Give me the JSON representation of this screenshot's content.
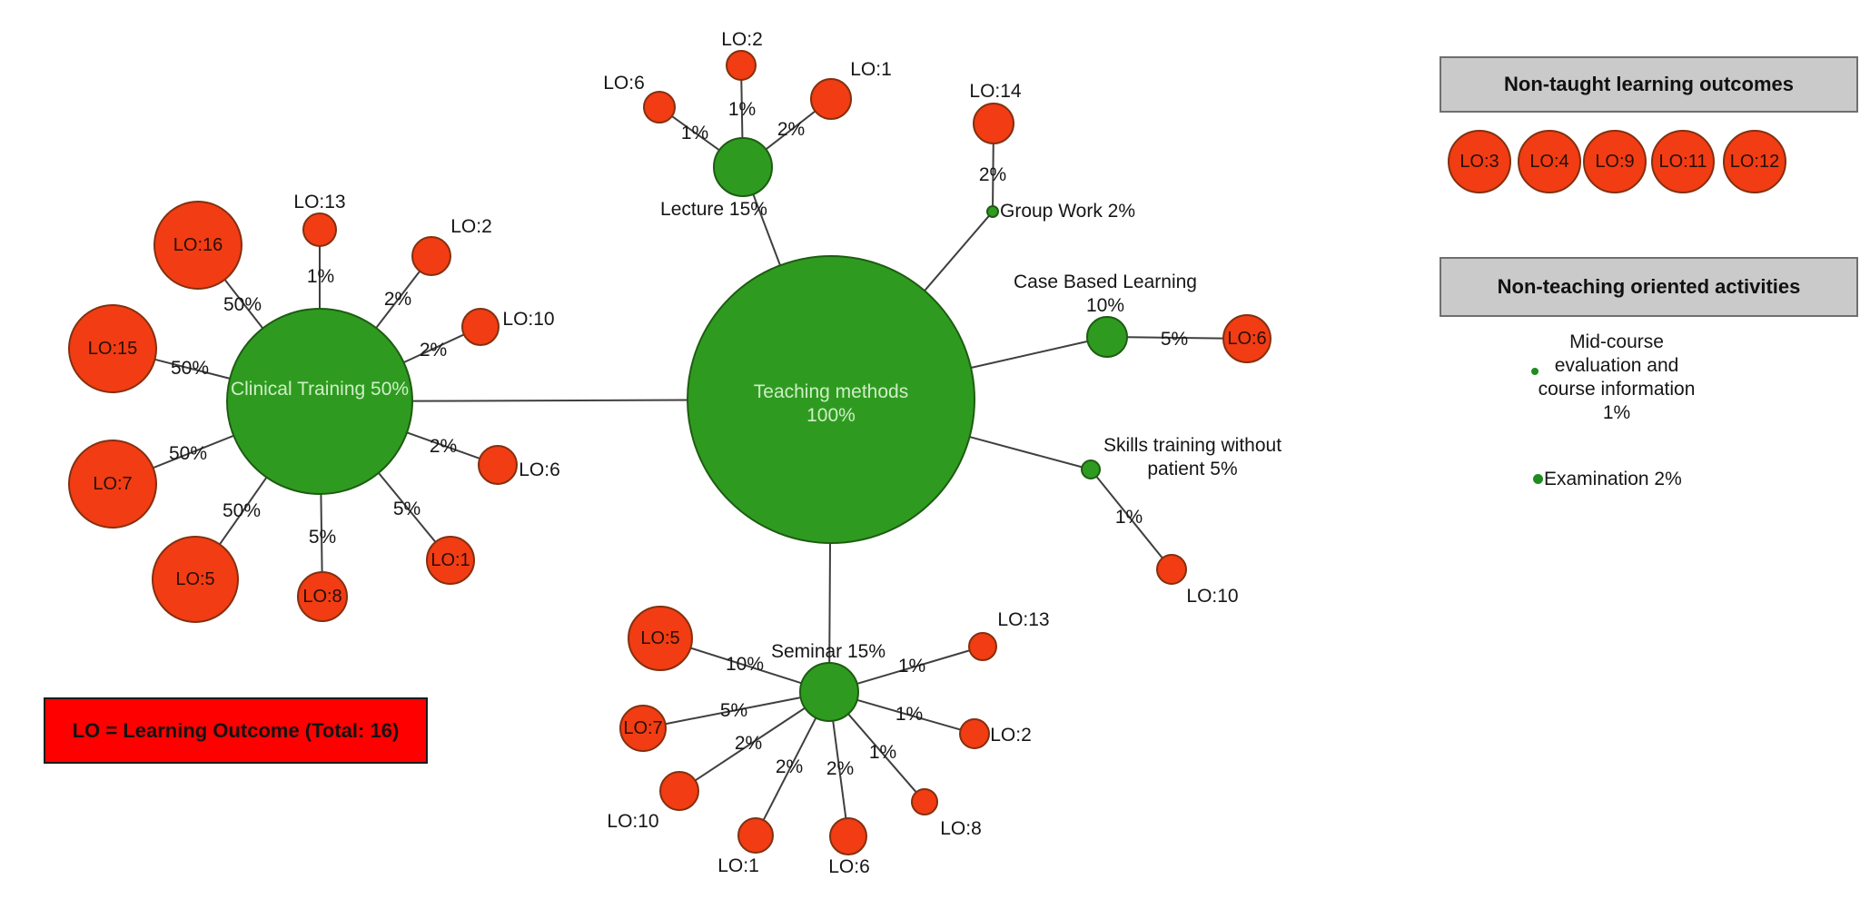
{
  "title": "Teaching methods and learning outcomes network diagram",
  "colors": {
    "method_green": "#2e9b20",
    "method_green_border": "#1e5c12",
    "lo_red": "#f23c13",
    "lo_red_border": "#82300f",
    "edge": "#3f3f3f",
    "panel_gray": "#cacaca",
    "legend_red": "#fe0000",
    "dot_green": "#1f8c1f",
    "hub_text": "#cfeec6"
  },
  "nodes": {
    "teaching": {
      "label": "Teaching methods\n100%"
    },
    "clinical": {
      "label": "Clinical Training 50%"
    },
    "lecture": {
      "label": "Lecture 15%"
    },
    "seminar": {
      "label": "Seminar 15%"
    },
    "cbl": {
      "label": "Case Based Learning\n10%"
    },
    "groupwork": {
      "label": "Group Work 2%"
    },
    "skills": {
      "label": "Skills training without\npatient 5%"
    },
    "cl_lo16": {
      "label": "LO:16",
      "pct": "50%"
    },
    "cl_lo13": {
      "label": "LO:13",
      "pct": "1%"
    },
    "cl_lo2": {
      "label": "LO:2",
      "pct": "2%"
    },
    "cl_lo10": {
      "label": "LO:10",
      "pct": "2%"
    },
    "cl_lo15": {
      "label": "LO:15",
      "pct": "50%"
    },
    "cl_lo6": {
      "label": "LO:6",
      "pct": "2%"
    },
    "cl_lo7": {
      "label": "LO:7",
      "pct": "50%"
    },
    "cl_lo5": {
      "label": "LO:5",
      "pct": "50%"
    },
    "cl_lo8": {
      "label": "LO:8",
      "pct": "5%"
    },
    "cl_lo1": {
      "label": "LO:1",
      "pct": "5%"
    },
    "lec_lo6": {
      "label": "LO:6",
      "pct": "1%"
    },
    "lec_lo2": {
      "label": "LO:2",
      "pct": "1%"
    },
    "lec_lo1": {
      "label": "LO:1",
      "pct": "2%"
    },
    "gw_lo14": {
      "label": "LO:14",
      "pct": "2%"
    },
    "cbl_lo6": {
      "label": "LO:6",
      "pct": "5%"
    },
    "sk_lo10": {
      "label": "LO:10",
      "pct": "1%"
    },
    "sem_lo5": {
      "label": "LO:5",
      "pct": "10%"
    },
    "sem_lo7": {
      "label": "LO:7",
      "pct": "5%"
    },
    "sem_lo10": {
      "label": "LO:10",
      "pct": "2%"
    },
    "sem_lo1": {
      "label": "LO:1",
      "pct": "2%"
    },
    "sem_lo6": {
      "label": "LO:6",
      "pct": "2%"
    },
    "sem_lo8": {
      "label": "LO:8",
      "pct": "1%"
    },
    "sem_lo2": {
      "label": "LO:2",
      "pct": "1%"
    },
    "sem_lo13": {
      "label": "LO:13",
      "pct": "1%"
    }
  },
  "right_panel": {
    "non_taught_title": "Non-taught learning outcomes",
    "non_taught_items": [
      "LO:3",
      "LO:4",
      "LO:9",
      "LO:11",
      "LO:12"
    ],
    "non_teaching_title": "Non-teaching oriented activities",
    "midcourse_label": "Mid-course\nevaluation and\ncourse information\n1%",
    "examination_label": "Examination 2%"
  },
  "legend": {
    "text": "LO = Learning Outcome (Total: 16)"
  }
}
